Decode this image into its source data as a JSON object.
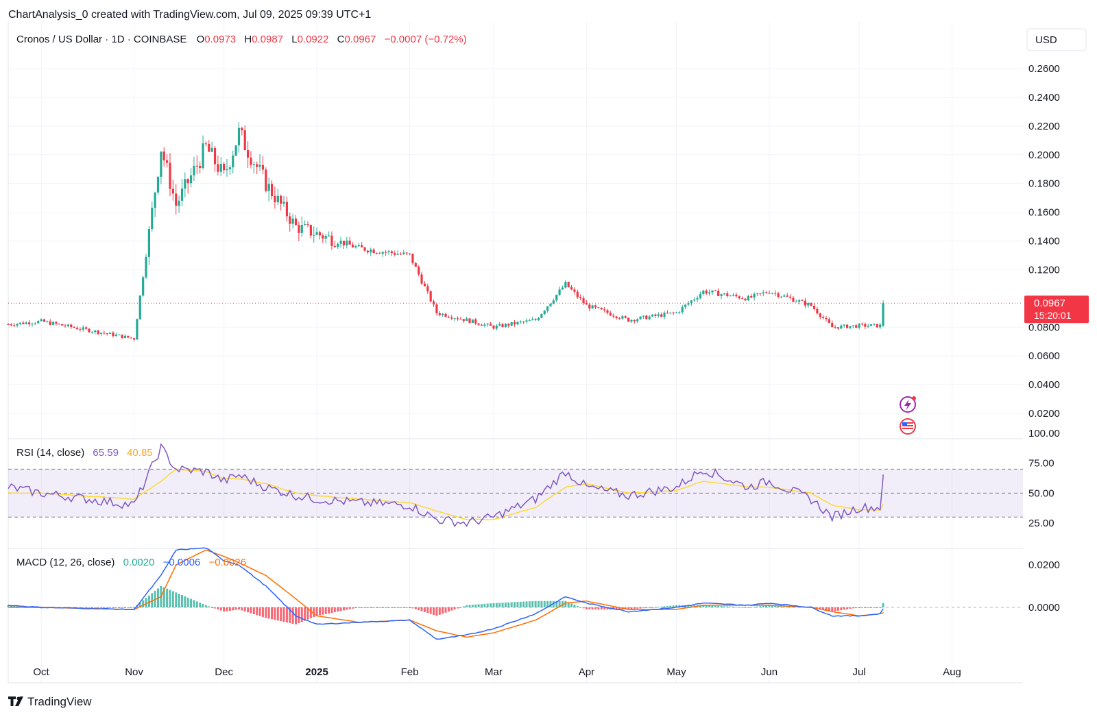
{
  "header": {
    "attribution": "ChartAnalysis_0 created with TradingView.com, Jul 09, 2025 09:39 UTC+1"
  },
  "legend": {
    "symbol": "Cronos / US Dollar · 1D · COINBASE",
    "o_label": "O",
    "o_value": "0.0973",
    "h_label": "H",
    "h_value": "0.0987",
    "l_label": "L",
    "l_value": "0.0922",
    "c_label": "C",
    "c_value": "0.0967",
    "change": "−0.0007 (−0.72%)"
  },
  "currency_button": "USD",
  "price_axis_labels": [
    "0.2600",
    "0.2400",
    "0.2200",
    "0.2000",
    "0.1800",
    "0.1600",
    "0.1400",
    "0.1200",
    "0.0800",
    "0.0600",
    "0.0400",
    "0.0200"
  ],
  "last_price_tag": {
    "price": "0.0967",
    "countdown": "15:20:01"
  },
  "rsi": {
    "title": "RSI (14, close)",
    "value": "65.59",
    "ma_value": "40.85",
    "axis_labels": [
      "100.00",
      "75.00",
      "50.00",
      "25.00"
    ]
  },
  "macd": {
    "title": "MACD (12, 26, close)",
    "hist_value": "0.0020",
    "macd_value": "−0.0006",
    "signal_value": "−0.0026",
    "axis_labels": [
      "0.0200",
      "0.0000"
    ]
  },
  "time_axis_labels": [
    "Oct",
    "Nov",
    "Dec",
    "2025",
    "Feb",
    "Mar",
    "Apr",
    "May",
    "Jun",
    "Jul",
    "Aug"
  ],
  "footer": {
    "logo_text": "TradingView"
  },
  "colors": {
    "up": "#22ab94",
    "down": "#f23645",
    "rsi_line": "#7e57c2",
    "rsi_ma": "#fdd835",
    "macd_line": "#2962ff",
    "signal_line": "#ff6d00",
    "grid": "#f0f3fa",
    "last_price": "#f23645"
  },
  "chart_data": [
    {
      "type": "candlestick",
      "title": "Cronos / US Dollar · 1D · COINBASE",
      "x": [
        "2024-09-20",
        "2024-10-01",
        "2024-11-01",
        "2024-11-10",
        "2024-11-15",
        "2024-11-25",
        "2024-12-01",
        "2024-12-06",
        "2024-12-15",
        "2024-12-25",
        "2025-01-01",
        "2025-01-15",
        "2025-02-01",
        "2025-02-10",
        "2025-02-20",
        "2025-03-01",
        "2025-03-15",
        "2025-03-25",
        "2025-04-01",
        "2025-04-15",
        "2025-05-01",
        "2025-05-10",
        "2025-05-25",
        "2025-06-01",
        "2025-06-15",
        "2025-06-22",
        "2025-07-01",
        "2025-07-08",
        "2025-07-09"
      ],
      "close": [
        0.082,
        0.084,
        0.072,
        0.205,
        0.165,
        0.205,
        0.185,
        0.215,
        0.18,
        0.15,
        0.145,
        0.135,
        0.13,
        0.09,
        0.085,
        0.08,
        0.085,
        0.11,
        0.095,
        0.085,
        0.09,
        0.105,
        0.1,
        0.105,
        0.095,
        0.08,
        0.081,
        0.081,
        0.0967
      ],
      "last_close": 0.0967,
      "ylim": [
        0.0,
        0.27
      ]
    },
    {
      "type": "line",
      "title": "RSI (14, close)",
      "series": [
        {
          "name": "RSI",
          "values": [
            55,
            50,
            40,
            88,
            70,
            68,
            60,
            65,
            55,
            48,
            45,
            42,
            40,
            28,
            25,
            30,
            45,
            68,
            55,
            48,
            55,
            70,
            55,
            60,
            45,
            30,
            38,
            38,
            65.59
          ]
        },
        {
          "name": "RSI MA",
          "values": [
            50,
            50,
            45,
            60,
            70,
            68,
            62,
            62,
            58,
            50,
            48,
            45,
            42,
            35,
            28,
            28,
            38,
            55,
            58,
            50,
            52,
            60,
            55,
            55,
            50,
            40,
            36,
            36,
            40.85
          ]
        }
      ],
      "bands": [
        30,
        50,
        70
      ],
      "ylim": [
        0,
        100
      ]
    },
    {
      "type": "line",
      "title": "MACD (12, 26, close)",
      "series": [
        {
          "name": "MACD",
          "values": [
            0.001,
            0.0,
            -0.001,
            0.015,
            0.027,
            0.028,
            0.022,
            0.02,
            0.01,
            -0.004,
            -0.008,
            -0.007,
            -0.006,
            -0.015,
            -0.013,
            -0.01,
            -0.003,
            0.005,
            0.002,
            -0.002,
            0.0,
            0.002,
            0.001,
            0.002,
            0.0,
            -0.004,
            -0.004,
            -0.003,
            -0.0006
          ]
        },
        {
          "name": "Signal",
          "values": [
            0.0,
            0.0,
            -0.001,
            0.005,
            0.02,
            0.027,
            0.024,
            0.021,
            0.015,
            0.004,
            -0.004,
            -0.007,
            -0.006,
            -0.011,
            -0.014,
            -0.012,
            -0.006,
            0.002,
            0.003,
            -0.001,
            -0.001,
            0.001,
            0.001,
            0.001,
            0.0,
            -0.002,
            -0.004,
            -0.003,
            -0.0026
          ]
        },
        {
          "name": "Histogram",
          "values": [
            0.001,
            0.0,
            0.0,
            0.01,
            0.007,
            0.001,
            -0.002,
            -0.001,
            -0.005,
            -0.008,
            -0.004,
            0.0,
            0.0,
            -0.004,
            0.001,
            0.002,
            0.003,
            0.003,
            -0.001,
            -0.001,
            0.001,
            0.001,
            0.0,
            0.001,
            0.0,
            -0.002,
            0.0,
            0.0,
            0.002
          ]
        }
      ],
      "ylim": [
        -0.02,
        0.03
      ]
    }
  ]
}
